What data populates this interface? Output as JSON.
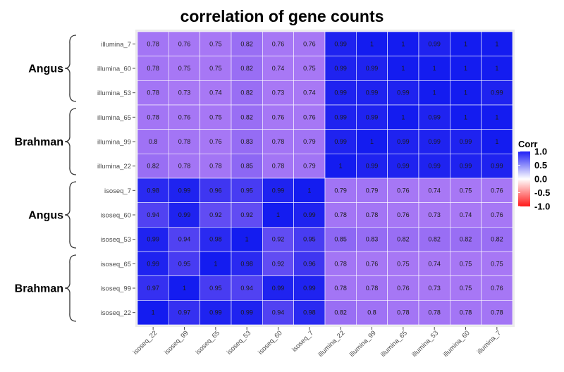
{
  "chart_data": {
    "type": "heatmap",
    "title": "correlation of gene counts",
    "x_labels": [
      "isoseq_22",
      "isoseq_99",
      "isoseq_65",
      "isoseq_53",
      "isoseq_60",
      "isoseq_7",
      "illumina_22",
      "illumina_99",
      "illumina_65",
      "illumina_53",
      "illumina_60",
      "illumina_7"
    ],
    "y_labels": [
      "illumina_7",
      "illumina_60",
      "illumina_53",
      "illumina_65",
      "illumina_99",
      "illumina_22",
      "isoseq_7",
      "isoseq_60",
      "isoseq_53",
      "isoseq_65",
      "isoseq_99",
      "isoseq_22"
    ],
    "values": [
      [
        "0.78",
        "0.76",
        "0.75",
        "0.82",
        "0.76",
        "0.76",
        "0.99",
        "1",
        "1",
        "0.99",
        "1",
        "1"
      ],
      [
        "0.78",
        "0.75",
        "0.75",
        "0.82",
        "0.74",
        "0.75",
        "0.99",
        "0.99",
        "1",
        "1",
        "1",
        "1"
      ],
      [
        "0.78",
        "0.73",
        "0.74",
        "0.82",
        "0.73",
        "0.74",
        "0.99",
        "0.99",
        "0.99",
        "1",
        "1",
        "0.99"
      ],
      [
        "0.78",
        "0.76",
        "0.75",
        "0.82",
        "0.76",
        "0.76",
        "0.99",
        "0.99",
        "1",
        "0.99",
        "1",
        "1"
      ],
      [
        "0.8",
        "0.78",
        "0.76",
        "0.83",
        "0.78",
        "0.79",
        "0.99",
        "1",
        "0.99",
        "0.99",
        "0.99",
        "1"
      ],
      [
        "0.82",
        "0.78",
        "0.78",
        "0.85",
        "0.78",
        "0.79",
        "1",
        "0.99",
        "0.99",
        "0.99",
        "0.99",
        "0.99"
      ],
      [
        "0.98",
        "0.99",
        "0.96",
        "0.95",
        "0.99",
        "1",
        "0.79",
        "0.79",
        "0.76",
        "0.74",
        "0.75",
        "0.76"
      ],
      [
        "0.94",
        "0.99",
        "0.92",
        "0.92",
        "1",
        "0.99",
        "0.78",
        "0.78",
        "0.76",
        "0.73",
        "0.74",
        "0.76"
      ],
      [
        "0.99",
        "0.94",
        "0.98",
        "1",
        "0.92",
        "0.95",
        "0.85",
        "0.83",
        "0.82",
        "0.82",
        "0.82",
        "0.82"
      ],
      [
        "0.99",
        "0.95",
        "1",
        "0.98",
        "0.92",
        "0.96",
        "0.78",
        "0.76",
        "0.75",
        "0.74",
        "0.75",
        "0.75"
      ],
      [
        "0.97",
        "1",
        "0.95",
        "0.94",
        "0.99",
        "0.99",
        "0.78",
        "0.78",
        "0.76",
        "0.73",
        "0.75",
        "0.76"
      ],
      [
        "1",
        "0.97",
        "0.99",
        "0.99",
        "0.94",
        "0.98",
        "0.82",
        "0.8",
        "0.78",
        "0.78",
        "0.78",
        "0.78"
      ]
    ],
    "row_groups": [
      {
        "label": "Angus",
        "first_row": 0,
        "last_row": 2
      },
      {
        "label": "Brahman",
        "first_row": 3,
        "last_row": 5
      },
      {
        "label": "Angus",
        "first_row": 6,
        "last_row": 8
      },
      {
        "label": "Brahman",
        "first_row": 9,
        "last_row": 11
      }
    ],
    "legend": {
      "title": "Corr",
      "ticks": [
        "1.0",
        "0.5",
        "0.0",
        "-0.5",
        "-1.0"
      ],
      "colors": {
        "high": "#1f1ff5",
        "mid": "#ffffff",
        "low": "#ff1a1a"
      },
      "range": [
        -1,
        1
      ]
    }
  }
}
